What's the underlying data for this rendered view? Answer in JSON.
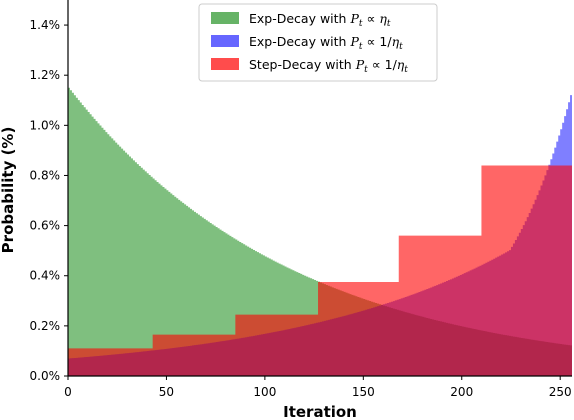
{
  "chart_data": {
    "type": "area",
    "xlabel": "Iteration",
    "ylabel": "Probability (%)",
    "xlim": [
      0,
      256
    ],
    "ylim": [
      0.0,
      1.5
    ],
    "x_ticks": [
      0,
      50,
      100,
      150,
      200,
      250
    ],
    "y_ticks": [
      0.0,
      0.2,
      0.4,
      0.6,
      0.8,
      1.0,
      1.2,
      1.4
    ],
    "y_tick_labels": [
      "0.0%",
      "0.2%",
      "0.4%",
      "0.6%",
      "0.8%",
      "1.0%",
      "1.2%",
      "1.4%"
    ],
    "legend_position": "top-center",
    "series": [
      {
        "name": "Exp-Decay with P_t ∝ η_t",
        "legend_prefix": "Exp-Decay with ",
        "legend_formula": "P_t ∝ η_t",
        "color": "#008000",
        "opacity": 0.5,
        "kind": "exponential-decreasing",
        "x": [
          0,
          32,
          64,
          96,
          128,
          160,
          192,
          224,
          256
        ],
        "values": [
          1.15,
          0.868,
          0.655,
          0.494,
          0.373,
          0.281,
          0.212,
          0.16,
          0.121
        ]
      },
      {
        "name": "Exp-Decay with P_t ∝ 1/η_t",
        "legend_prefix": "Exp-Decay with ",
        "legend_formula": "P_t ∝ 1/η_t",
        "color": "#0000ff",
        "opacity": 0.5,
        "kind": "exponential-increasing",
        "x": [
          0,
          32,
          64,
          96,
          128,
          160,
          192,
          224,
          256
        ],
        "values": [
          0.07,
          0.093,
          0.123,
          0.163,
          0.216,
          0.286,
          0.379,
          0.502,
          1.15
        ]
      },
      {
        "name": "Step-Decay with P_t ∝ 1/η_t",
        "legend_prefix": "Step-Decay with ",
        "legend_formula": "P_t ∝ 1/η_t",
        "color": "#ff0000",
        "opacity": 0.6,
        "kind": "step",
        "steps": [
          {
            "x0": 0,
            "x1": 43,
            "y": 0.11
          },
          {
            "x0": 43,
            "x1": 85,
            "y": 0.165
          },
          {
            "x0": 85,
            "x1": 127,
            "y": 0.245
          },
          {
            "x0": 127,
            "x1": 168,
            "y": 0.375
          },
          {
            "x0": 168,
            "x1": 210,
            "y": 0.56
          },
          {
            "x0": 210,
            "x1": 256,
            "y": 0.84
          }
        ]
      }
    ]
  }
}
